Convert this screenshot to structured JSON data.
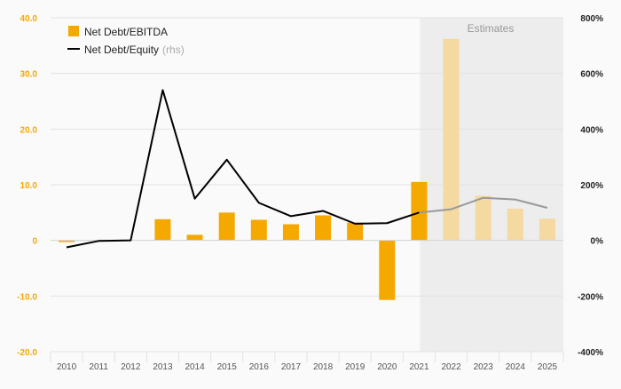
{
  "chart_data": {
    "type": "bar",
    "categories": [
      "2010",
      "2011",
      "2012",
      "2013",
      "2014",
      "2015",
      "2016",
      "2017",
      "2018",
      "2019",
      "2020",
      "2021",
      "2022",
      "2023",
      "2024",
      "2025"
    ],
    "series": [
      {
        "name": "Net Debt/EBITDA",
        "type": "bar",
        "axis": "left",
        "color": "#F5A800",
        "values": [
          -0.3,
          null,
          null,
          3.8,
          1.0,
          5.0,
          3.7,
          2.9,
          4.5,
          3.2,
          -10.7,
          10.5,
          36.2,
          8.0,
          5.7,
          3.9
        ]
      },
      {
        "name": "Net Debt/Equity",
        "name_suffix": "(rhs)",
        "type": "line",
        "axis": "right",
        "color": "#000000",
        "values": [
          -25,
          -2,
          0,
          540,
          150,
          290,
          135,
          87,
          106,
          60,
          62,
          100,
          112,
          153,
          147,
          117
        ]
      }
    ],
    "estimates": {
      "label": "Estimates",
      "from_category": "2022",
      "bar_color": "#F4D9A0",
      "line_color": "#999999",
      "shade_color": "#EDEDED"
    },
    "left_axis": {
      "ylim": [
        -20,
        40
      ],
      "ticks": [
        40,
        30,
        20,
        10,
        0,
        -10,
        -20
      ],
      "tick_labels": [
        "40.0",
        "30.0",
        "20.0",
        "10.0",
        "0",
        "-10.0",
        "-20.0"
      ],
      "label_color": "#F5A800"
    },
    "right_axis": {
      "ylim": [
        -400,
        800
      ],
      "ticks": [
        800,
        600,
        400,
        200,
        0,
        -200,
        -400
      ],
      "tick_labels": [
        "800%",
        "600%",
        "400%",
        "200%",
        "0%",
        "-200%",
        "-400%"
      ],
      "label_color": "#222222"
    },
    "xlabel": "",
    "ylabel": "",
    "grid": true,
    "legend_position": "top-left"
  }
}
